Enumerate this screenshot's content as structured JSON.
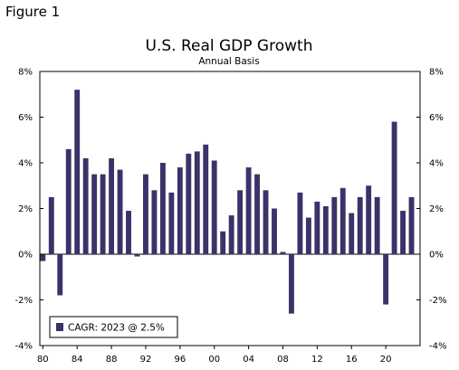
{
  "figure_label": "Figure 1",
  "chart_data": {
    "type": "bar",
    "title": "U.S. Real GDP Growth",
    "subtitle": "Annual Basis",
    "xlabel": "",
    "ylabel": "",
    "ylim": [
      -4,
      8
    ],
    "y_ticks": [
      -4,
      -2,
      0,
      2,
      4,
      6,
      8
    ],
    "y_tick_labels": [
      "-4%",
      "-2%",
      "0%",
      "2%",
      "4%",
      "6%",
      "8%"
    ],
    "x_ticks": [
      1980,
      1984,
      1988,
      1992,
      1996,
      2000,
      2004,
      2008,
      2012,
      2016,
      2020
    ],
    "x_tick_labels": [
      "80",
      "84",
      "88",
      "92",
      "96",
      "00",
      "04",
      "08",
      "12",
      "16",
      "20"
    ],
    "bar_color": "#3b3269",
    "legend_position": "bottom-left",
    "series": [
      {
        "name": "CAGR: 2023 @ 2.5%",
        "x": [
          1980,
          1981,
          1982,
          1983,
          1984,
          1985,
          1986,
          1987,
          1988,
          1989,
          1990,
          1991,
          1992,
          1993,
          1994,
          1995,
          1996,
          1997,
          1998,
          1999,
          2000,
          2001,
          2002,
          2003,
          2004,
          2005,
          2006,
          2007,
          2008,
          2009,
          2010,
          2011,
          2012,
          2013,
          2014,
          2015,
          2016,
          2017,
          2018,
          2019,
          2020,
          2021,
          2022,
          2023
        ],
        "values": [
          -0.3,
          2.5,
          -1.8,
          4.6,
          7.2,
          4.2,
          3.5,
          3.5,
          4.2,
          3.7,
          1.9,
          -0.1,
          3.5,
          2.8,
          4.0,
          2.7,
          3.8,
          4.4,
          4.5,
          4.8,
          4.1,
          1.0,
          1.7,
          2.8,
          3.8,
          3.5,
          2.8,
          2.0,
          0.1,
          -2.6,
          2.7,
          1.6,
          2.3,
          2.1,
          2.5,
          2.9,
          1.8,
          2.5,
          3.0,
          2.5,
          -2.2,
          5.8,
          1.9,
          2.5
        ]
      }
    ]
  }
}
